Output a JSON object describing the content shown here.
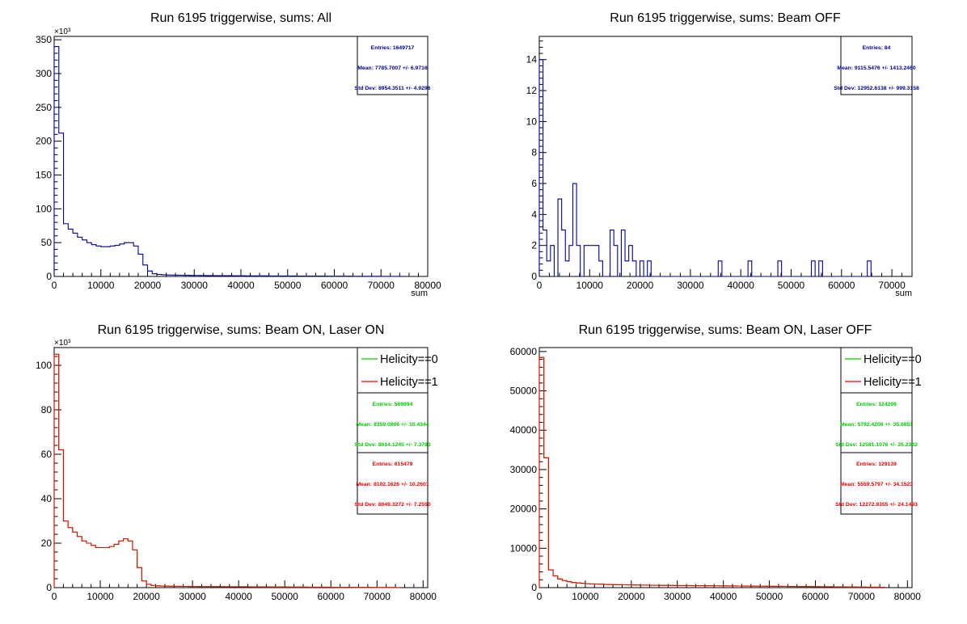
{
  "colors": {
    "blue": "#000099",
    "green": "#00cc00",
    "red": "#ee0000",
    "frame": "#000000"
  },
  "chart_data": [
    {
      "type": "histogram",
      "title": "Run 6195 triggerwise, sums: All",
      "xlabel": "sum",
      "ylabel": "",
      "xlim": [
        0,
        80000
      ],
      "ylim": [
        0,
        355000
      ],
      "x_ticks": [
        0,
        10000,
        20000,
        30000,
        40000,
        50000,
        60000,
        70000,
        80000
      ],
      "x_tick_labels": [
        "0",
        "10000",
        "20000",
        "30000",
        "40000",
        "50000",
        "60000",
        "70000",
        "80000"
      ],
      "y_ticks": [
        0,
        50000,
        100000,
        150000,
        200000,
        250000,
        300000,
        350000
      ],
      "y_tick_labels": [
        "0",
        "50",
        "100",
        "150",
        "200",
        "250",
        "300",
        "350"
      ],
      "y_exponent": "×10³",
      "bin_width": 1000,
      "series": [
        {
          "color_key": "blue",
          "values": [
            340000,
            212000,
            78000,
            70000,
            64000,
            58000,
            54000,
            50000,
            47000,
            45000,
            44000,
            44000,
            45000,
            46000,
            48000,
            50000,
            50000,
            45000,
            33000,
            17000,
            8000,
            4000,
            3000,
            2500,
            2200,
            2000,
            1900,
            1800,
            1700,
            1600,
            1500,
            1400,
            1300,
            1300,
            1200,
            1200,
            1100,
            1100,
            1000,
            1000,
            950,
            900,
            900,
            850,
            800,
            800,
            750,
            750,
            700,
            700,
            650,
            650,
            600,
            600,
            550,
            550,
            500,
            500,
            450,
            450,
            400,
            400,
            350,
            350,
            300,
            300,
            250,
            250,
            200,
            200,
            150,
            150,
            100,
            100,
            50
          ]
        }
      ],
      "stats": [
        {
          "color_key": "blue",
          "entries": "Entries: 1649717",
          "mean": "Mean: 7785.7007 +/- 6.9716",
          "std": "Std Dev: 8954.3511 +/- 4.9296"
        }
      ]
    },
    {
      "type": "histogram",
      "title": "Run 6195 triggerwise, sums: Beam OFF",
      "xlabel": "sum",
      "ylabel": "",
      "xlim": [
        0,
        74000
      ],
      "ylim": [
        0,
        15.5
      ],
      "x_ticks": [
        0,
        10000,
        20000,
        30000,
        40000,
        50000,
        60000,
        70000
      ],
      "x_tick_labels": [
        "0",
        "10000",
        "20000",
        "30000",
        "40000",
        "50000",
        "60000",
        "70000"
      ],
      "y_ticks": [
        0,
        2,
        4,
        6,
        8,
        10,
        12,
        14
      ],
      "y_tick_labels": [
        "0",
        "2",
        "4",
        "6",
        "8",
        "10",
        "12",
        "14"
      ],
      "y_exponent": "",
      "bin_width": 740,
      "series": [
        {
          "color_key": "blue",
          "values": [
            14,
            3,
            1,
            2,
            0,
            5,
            3,
            1,
            2,
            6,
            2,
            0,
            2,
            2,
            2,
            2,
            1,
            0,
            0,
            3,
            2,
            0,
            3,
            1,
            2,
            1,
            0,
            1,
            0,
            1,
            0,
            0,
            0,
            0,
            0,
            0,
            0,
            0,
            0,
            0,
            0,
            0,
            0,
            0,
            0,
            0,
            0,
            0,
            1,
            0,
            0,
            0,
            0,
            0,
            0,
            0,
            1,
            0,
            0,
            0,
            0,
            0,
            0,
            0,
            1,
            0,
            0,
            0,
            0,
            0,
            0,
            0,
            0,
            1,
            0,
            1,
            0,
            0,
            0,
            0,
            0,
            0,
            0,
            0,
            0,
            0,
            0,
            0,
            1,
            0
          ]
        }
      ],
      "stats": [
        {
          "color_key": "blue",
          "entries": "Entries: 84",
          "mean": "Mean: 9115.5476 +/- 1413.2460",
          "std": "Std Dev: 12952.6138 +/- 999.3158"
        }
      ]
    },
    {
      "type": "histogram",
      "title": "Run 6195 triggerwise, sums: Beam ON, Laser ON",
      "xlabel": "",
      "ylabel": "",
      "xlim": [
        0,
        81000
      ],
      "ylim": [
        0,
        108000
      ],
      "x_ticks": [
        0,
        10000,
        20000,
        30000,
        40000,
        50000,
        60000,
        70000,
        80000
      ],
      "x_tick_labels": [
        "0",
        "10000",
        "20000",
        "30000",
        "40000",
        "50000",
        "60000",
        "70000",
        "80000"
      ],
      "y_ticks": [
        0,
        20000,
        40000,
        60000,
        80000,
        100000
      ],
      "y_tick_labels": [
        "0",
        "20",
        "40",
        "60",
        "80",
        "100"
      ],
      "y_exponent": "×10³",
      "bin_width": 1000,
      "series": [
        {
          "name": "Helicity==0",
          "color_key": "green",
          "values": [
            105000,
            62000,
            30000,
            27000,
            25000,
            23000,
            21000,
            20000,
            19000,
            18000,
            18000,
            18000,
            18500,
            19500,
            21000,
            22000,
            21000,
            17000,
            9000,
            3000,
            1500,
            1000,
            800,
            700,
            650,
            600,
            580,
            560,
            540,
            520,
            500,
            480,
            460,
            450,
            440,
            430,
            420,
            410,
            400,
            390,
            380,
            370,
            360,
            350,
            340,
            330,
            320,
            310,
            300,
            290,
            280,
            270,
            260,
            250,
            240,
            230,
            220,
            210,
            200,
            190,
            180,
            170,
            160,
            150,
            140,
            130,
            120,
            110,
            100,
            90,
            80,
            70,
            60,
            50,
            40
          ]
        },
        {
          "name": "Helicity==1",
          "color_key": "red",
          "values": [
            105000,
            62000,
            30000,
            27000,
            25000,
            23000,
            21000,
            20000,
            19000,
            18000,
            18000,
            18000,
            18500,
            19500,
            21000,
            22000,
            21000,
            17000,
            9000,
            3000,
            1500,
            1000,
            800,
            700,
            650,
            600,
            580,
            560,
            540,
            520,
            500,
            480,
            460,
            450,
            440,
            430,
            420,
            410,
            400,
            390,
            380,
            370,
            360,
            350,
            340,
            330,
            320,
            310,
            300,
            290,
            280,
            270,
            260,
            250,
            240,
            230,
            220,
            210,
            200,
            190,
            180,
            170,
            160,
            150,
            140,
            130,
            120,
            110,
            100,
            90,
            80,
            70,
            60,
            50,
            40
          ]
        }
      ],
      "legend": [
        {
          "label": "Helicity==0",
          "color_key": "green"
        },
        {
          "label": "Helicity==1",
          "color_key": "red"
        }
      ],
      "stats": [
        {
          "color_key": "green",
          "entries": "Entries: 589894",
          "mean": "Mean: 8359.0806 +/- 10.4344",
          "std": "Std Dev: 8014.1245 +/- 7.3783"
        },
        {
          "color_key": "red",
          "entries": "Entries: 615479",
          "mean": "Mean: 8102.1626 +/- 10.2601",
          "std": "Std Dev: 8049.3272 +/- 7.2550"
        }
      ]
    },
    {
      "type": "histogram",
      "title": "Run 6195 triggerwise, sums: Beam ON, Laser OFF",
      "xlabel": "",
      "ylabel": "",
      "xlim": [
        0,
        81000
      ],
      "ylim": [
        0,
        61000
      ],
      "x_ticks": [
        0,
        10000,
        20000,
        30000,
        40000,
        50000,
        60000,
        70000,
        80000
      ],
      "x_tick_labels": [
        "0",
        "10000",
        "20000",
        "30000",
        "40000",
        "50000",
        "60000",
        "70000",
        "80000"
      ],
      "y_ticks": [
        0,
        10000,
        20000,
        30000,
        40000,
        50000,
        60000
      ],
      "y_tick_labels": [
        "0",
        "10000",
        "20000",
        "30000",
        "40000",
        "50000",
        "60000"
      ],
      "y_exponent": "",
      "bin_width": 1000,
      "series": [
        {
          "name": "Helicity==0",
          "color_key": "green",
          "values": [
            58500,
            33000,
            4500,
            3000,
            2200,
            1800,
            1500,
            1300,
            1200,
            1100,
            1000,
            950,
            900,
            850,
            800,
            780,
            760,
            740,
            720,
            700,
            680,
            660,
            640,
            620,
            600,
            590,
            580,
            570,
            560,
            550,
            540,
            530,
            520,
            510,
            500,
            490,
            480,
            470,
            460,
            450,
            440,
            430,
            420,
            410,
            400,
            390,
            380,
            370,
            360,
            350,
            340,
            330,
            320,
            310,
            300,
            290,
            280,
            270,
            260,
            250,
            240,
            230,
            220,
            210,
            200,
            190,
            180,
            170,
            160,
            150,
            140,
            130,
            120,
            110,
            100
          ]
        },
        {
          "name": "Helicity==1",
          "color_key": "red",
          "values": [
            58500,
            33000,
            4500,
            3000,
            2200,
            1800,
            1500,
            1300,
            1200,
            1100,
            1000,
            950,
            900,
            850,
            800,
            780,
            760,
            740,
            720,
            700,
            680,
            660,
            640,
            620,
            600,
            590,
            580,
            570,
            560,
            550,
            540,
            530,
            520,
            510,
            500,
            490,
            480,
            470,
            460,
            450,
            440,
            430,
            420,
            410,
            400,
            390,
            380,
            370,
            360,
            350,
            340,
            330,
            320,
            310,
            300,
            290,
            280,
            270,
            260,
            250,
            240,
            230,
            220,
            210,
            200,
            190,
            180,
            170,
            160,
            150,
            140,
            130,
            120,
            110,
            100
          ]
        }
      ],
      "legend": [
        {
          "label": "Helicity==0",
          "color_key": "green"
        },
        {
          "label": "Helicity==1",
          "color_key": "red"
        }
      ],
      "stats": [
        {
          "color_key": "green",
          "entries": "Entries: 124298",
          "mean": "Mean: 5792.4206 +/- 35.6851",
          "std": "Std Dev: 12581.1076 +/- 25.2332"
        },
        {
          "color_key": "red",
          "entries": "Entries: 129139",
          "mean": "Mean: 5559.5797 +/- 34.1523",
          "std": "Std Dev: 12272.9355 +/- 24.1493"
        }
      ]
    }
  ]
}
